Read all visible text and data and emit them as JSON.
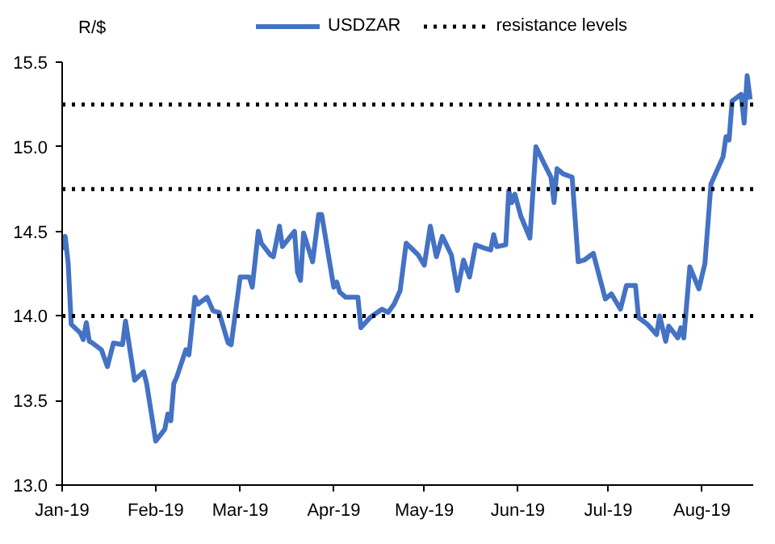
{
  "chart_data": {
    "type": "line",
    "ylabel": "R/$",
    "legend": "top",
    "grid": false,
    "line_style": "solid",
    "marker": "none",
    "x": [
      "2019-01-01",
      "2019-01-02",
      "2019-01-03",
      "2019-01-04",
      "2019-01-07",
      "2019-01-08",
      "2019-01-09",
      "2019-01-10",
      "2019-01-11",
      "2019-01-14",
      "2019-01-16",
      "2019-01-18",
      "2019-01-21",
      "2019-01-22",
      "2019-01-25",
      "2019-01-28",
      "2019-01-29",
      "2019-02-01",
      "2019-02-04",
      "2019-02-05",
      "2019-02-06",
      "2019-02-07",
      "2019-02-08",
      "2019-02-11",
      "2019-02-12",
      "2019-02-14",
      "2019-02-15",
      "2019-02-18",
      "2019-02-20",
      "2019-02-22",
      "2019-02-25",
      "2019-02-26",
      "2019-03-01",
      "2019-03-04",
      "2019-03-05",
      "2019-03-07",
      "2019-03-08",
      "2019-03-11",
      "2019-03-12",
      "2019-03-14",
      "2019-03-15",
      "2019-03-19",
      "2019-03-20",
      "2019-03-21",
      "2019-03-22",
      "2019-03-25",
      "2019-03-27",
      "2019-03-28",
      "2019-04-01",
      "2019-04-02",
      "2019-04-03",
      "2019-04-05",
      "2019-04-09",
      "2019-04-10",
      "2019-04-12",
      "2019-04-13",
      "2019-04-17",
      "2019-04-19",
      "2019-04-21",
      "2019-04-23",
      "2019-04-25",
      "2019-04-29",
      "2019-05-01",
      "2019-05-03",
      "2019-05-05",
      "2019-05-07",
      "2019-05-10",
      "2019-05-12",
      "2019-05-14",
      "2019-05-16",
      "2019-05-18",
      "2019-05-21",
      "2019-05-23",
      "2019-05-24",
      "2019-05-25",
      "2019-05-28",
      "2019-05-29",
      "2019-05-30",
      "2019-05-31",
      "2019-06-02",
      "2019-06-05",
      "2019-06-07",
      "2019-06-10",
      "2019-06-12",
      "2019-06-13",
      "2019-06-14",
      "2019-06-16",
      "2019-06-19",
      "2019-06-21",
      "2019-06-23",
      "2019-06-26",
      "2019-06-30",
      "2019-07-02",
      "2019-07-05",
      "2019-07-07",
      "2019-07-10",
      "2019-07-11",
      "2019-07-14",
      "2019-07-17",
      "2019-07-18",
      "2019-07-20",
      "2019-07-21",
      "2019-07-24",
      "2019-07-25",
      "2019-07-26",
      "2019-07-28",
      "2019-07-31",
      "2019-08-02",
      "2019-08-04",
      "2019-08-08",
      "2019-08-09",
      "2019-08-10",
      "2019-08-11",
      "2019-08-14",
      "2019-08-15",
      "2019-08-16",
      "2019-08-17"
    ],
    "series": [
      {
        "name": "USDZAR",
        "color": "#4472c4",
        "values": [
          14.39,
          14.47,
          14.31,
          13.95,
          13.9,
          13.86,
          13.96,
          13.85,
          13.84,
          13.8,
          13.7,
          13.84,
          13.83,
          13.97,
          13.62,
          13.67,
          13.6,
          13.26,
          13.33,
          13.42,
          13.38,
          13.6,
          13.64,
          13.8,
          13.77,
          14.11,
          14.07,
          14.11,
          14.03,
          14.02,
          13.84,
          13.83,
          14.23,
          14.23,
          14.17,
          14.5,
          14.43,
          14.36,
          14.35,
          14.53,
          14.41,
          14.5,
          14.26,
          14.21,
          14.49,
          14.32,
          14.6,
          14.6,
          14.17,
          14.2,
          14.14,
          14.11,
          14.11,
          13.93,
          13.97,
          13.99,
          14.04,
          14.02,
          14.07,
          14.15,
          14.43,
          14.36,
          14.3,
          14.53,
          14.35,
          14.47,
          14.36,
          14.15,
          14.33,
          14.23,
          14.42,
          14.4,
          14.39,
          14.48,
          14.41,
          14.42,
          14.74,
          14.67,
          14.72,
          14.59,
          14.46,
          15.0,
          14.89,
          14.82,
          14.67,
          14.87,
          14.84,
          14.82,
          14.32,
          14.33,
          14.37,
          14.1,
          14.13,
          14.04,
          14.18,
          14.18,
          13.99,
          13.95,
          13.89,
          14.0,
          13.85,
          13.94,
          13.87,
          13.93,
          13.87,
          14.29,
          14.16,
          14.31,
          14.78,
          14.94,
          15.06,
          15.04,
          15.27,
          15.31,
          15.14,
          15.42,
          15.28
        ]
      }
    ],
    "xlim": [
      "2019-01-01",
      "2019-08-18"
    ],
    "xticks": [
      {
        "value": "2019-01-01",
        "label": "Jan-19"
      },
      {
        "value": "2019-02-01",
        "label": "Feb-19"
      },
      {
        "value": "2019-03-01",
        "label": "Mar-19"
      },
      {
        "value": "2019-04-01",
        "label": "Apr-19"
      },
      {
        "value": "2019-05-01",
        "label": "May-19"
      },
      {
        "value": "2019-06-01",
        "label": "Jun-19"
      },
      {
        "value": "2019-07-01",
        "label": "Jul-19"
      },
      {
        "value": "2019-08-01",
        "label": "Aug-19"
      }
    ],
    "ylim": [
      13.0,
      15.5
    ],
    "yticks": [
      {
        "value": 13.0,
        "label": "13.0"
      },
      {
        "value": 13.5,
        "label": "13.5"
      },
      {
        "value": 14.0,
        "label": "14.0"
      },
      {
        "value": 14.5,
        "label": "14.5"
      },
      {
        "value": 15.0,
        "label": "15.0"
      },
      {
        "value": 15.5,
        "label": "15.5"
      }
    ],
    "ref_lines": [
      {
        "axis": "y",
        "value": 15.25,
        "label": "resistance levels",
        "color": "#000000",
        "line_style": "dotted"
      },
      {
        "axis": "y",
        "value": 14.75,
        "color": "#000000",
        "line_style": "dotted"
      },
      {
        "axis": "y",
        "value": 14.0,
        "color": "#000000",
        "line_style": "dotted"
      }
    ]
  }
}
